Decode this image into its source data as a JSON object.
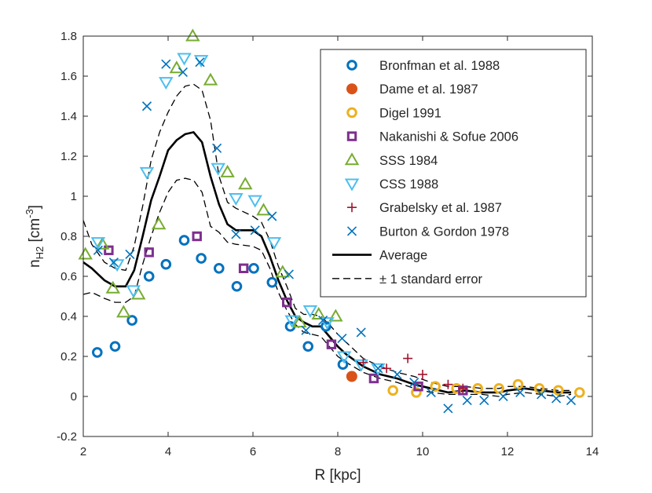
{
  "chart_data": {
    "type": "scatter",
    "xlabel": "R [kpc]",
    "ylabel": {
      "base": "n",
      "sub": "H2",
      "unit_open": " [cm",
      "sup": "-3",
      "unit_close": "]"
    },
    "xlim": [
      2,
      14
    ],
    "ylim": [
      -0.2,
      1.8
    ],
    "xticks": [
      "2",
      "4",
      "6",
      "8",
      "10",
      "12",
      "14"
    ],
    "yticks": [
      "-0.2",
      "0",
      "0.2",
      "0.4",
      "0.6",
      "0.8",
      "1",
      "1.2",
      "1.4",
      "1.6",
      "1.8"
    ],
    "legend_position": "top-right",
    "series": [
      {
        "name": "Bronfman et al. 1988",
        "marker": "circle",
        "color": "#0072BD",
        "points": [
          [
            2.33,
            0.22
          ],
          [
            2.75,
            0.25
          ],
          [
            3.15,
            0.38
          ],
          [
            3.55,
            0.6
          ],
          [
            3.95,
            0.66
          ],
          [
            4.38,
            0.78
          ],
          [
            4.78,
            0.69
          ],
          [
            5.2,
            0.64
          ],
          [
            5.62,
            0.55
          ],
          [
            6.02,
            0.64
          ],
          [
            6.45,
            0.57
          ],
          [
            6.88,
            0.35
          ],
          [
            7.3,
            0.25
          ],
          [
            7.72,
            0.35
          ],
          [
            8.12,
            0.16
          ]
        ]
      },
      {
        "name": "Dame et al. 1987",
        "marker": "filled-circle",
        "color": "#D95319",
        "points": [
          [
            8.33,
            0.1
          ]
        ]
      },
      {
        "name": "Digel 1991",
        "marker": "circle",
        "color": "#EDB120",
        "points": [
          [
            9.3,
            0.03
          ],
          [
            9.85,
            0.02
          ],
          [
            10.3,
            0.05
          ],
          [
            10.8,
            0.04
          ],
          [
            11.3,
            0.04
          ],
          [
            11.8,
            0.04
          ],
          [
            12.25,
            0.06
          ],
          [
            12.75,
            0.04
          ],
          [
            13.2,
            0.03
          ],
          [
            13.7,
            0.02
          ]
        ]
      },
      {
        "name": "Nakanishi & Sofue 2006",
        "marker": "square",
        "color": "#7E2F8E",
        "points": [
          [
            2.6,
            0.73
          ],
          [
            3.55,
            0.72
          ],
          [
            4.68,
            0.8
          ],
          [
            5.78,
            0.64
          ],
          [
            6.8,
            0.47
          ],
          [
            7.85,
            0.26
          ],
          [
            8.85,
            0.09
          ],
          [
            9.9,
            0.05
          ],
          [
            10.95,
            0.03
          ]
        ]
      },
      {
        "name": "SSS 1984",
        "marker": "triangle-up",
        "color": "#77AC30",
        "points": [
          [
            2.05,
            0.71
          ],
          [
            2.45,
            0.76
          ],
          [
            2.7,
            0.54
          ],
          [
            2.95,
            0.42
          ],
          [
            3.3,
            0.51
          ],
          [
            3.78,
            0.86
          ],
          [
            4.2,
            1.64
          ],
          [
            4.58,
            1.8
          ],
          [
            5.0,
            1.58
          ],
          [
            5.4,
            1.12
          ],
          [
            5.82,
            1.06
          ],
          [
            6.25,
            0.93
          ],
          [
            6.7,
            0.62
          ],
          [
            7.1,
            0.37
          ],
          [
            7.55,
            0.41
          ],
          [
            7.95,
            0.4
          ]
        ]
      },
      {
        "name": "CSS 1988",
        "marker": "triangle-down",
        "color": "#4DBEEE",
        "points": [
          [
            2.35,
            0.77
          ],
          [
            2.8,
            0.66
          ],
          [
            3.18,
            0.53
          ],
          [
            3.5,
            1.12
          ],
          [
            3.95,
            1.57
          ],
          [
            4.38,
            1.69
          ],
          [
            4.78,
            1.68
          ],
          [
            5.18,
            1.14
          ],
          [
            5.6,
            0.99
          ],
          [
            6.05,
            0.98
          ],
          [
            6.5,
            0.77
          ],
          [
            6.92,
            0.38
          ],
          [
            7.35,
            0.43
          ],
          [
            7.75,
            0.37
          ],
          [
            8.15,
            0.2
          ],
          [
            8.55,
            0.16
          ],
          [
            8.95,
            0.14
          ]
        ]
      },
      {
        "name": "Grabelsky et al. 1987",
        "marker": "plus",
        "color": "#A2142F",
        "points": [
          [
            8.6,
            0.17
          ],
          [
            9.15,
            0.14
          ],
          [
            9.65,
            0.19
          ],
          [
            10.0,
            0.11
          ],
          [
            10.6,
            0.06
          ],
          [
            10.95,
            0.04
          ]
        ]
      },
      {
        "name": "Burton & Gordon 1978",
        "marker": "x",
        "color": "#0072BD",
        "points": [
          [
            2.35,
            0.73
          ],
          [
            2.72,
            0.67
          ],
          [
            3.1,
            0.71
          ],
          [
            3.5,
            1.45
          ],
          [
            3.95,
            1.66
          ],
          [
            4.35,
            1.62
          ],
          [
            4.75,
            1.67
          ],
          [
            5.15,
            1.24
          ],
          [
            5.6,
            0.81
          ],
          [
            6.05,
            0.83
          ],
          [
            6.45,
            0.9
          ],
          [
            6.85,
            0.61
          ],
          [
            7.25,
            0.33
          ],
          [
            7.65,
            0.38
          ],
          [
            8.1,
            0.29
          ],
          [
            8.55,
            0.32
          ],
          [
            8.95,
            0.14
          ],
          [
            9.4,
            0.11
          ],
          [
            9.8,
            0.07
          ],
          [
            10.2,
            0.02
          ],
          [
            10.6,
            -0.06
          ],
          [
            11.05,
            -0.02
          ],
          [
            11.45,
            -0.02
          ],
          [
            11.9,
            0.0
          ],
          [
            12.3,
            0.02
          ],
          [
            12.8,
            0.01
          ],
          [
            13.15,
            -0.01
          ],
          [
            13.5,
            -0.02
          ]
        ]
      },
      {
        "name": "Average",
        "marker": "line",
        "color": "#000000",
        "points": [
          [
            2.0,
            0.67
          ],
          [
            2.2,
            0.64
          ],
          [
            2.5,
            0.58
          ],
          [
            2.75,
            0.55
          ],
          [
            3.0,
            0.55
          ],
          [
            3.2,
            0.63
          ],
          [
            3.4,
            0.8
          ],
          [
            3.6,
            0.98
          ],
          [
            3.8,
            1.1
          ],
          [
            4.0,
            1.23
          ],
          [
            4.2,
            1.28
          ],
          [
            4.4,
            1.31
          ],
          [
            4.6,
            1.32
          ],
          [
            4.8,
            1.27
          ],
          [
            5.0,
            1.1
          ],
          [
            5.2,
            0.96
          ],
          [
            5.4,
            0.86
          ],
          [
            5.6,
            0.83
          ],
          [
            6.0,
            0.83
          ],
          [
            6.2,
            0.8
          ],
          [
            6.4,
            0.7
          ],
          [
            6.6,
            0.58
          ],
          [
            6.8,
            0.48
          ],
          [
            7.0,
            0.4
          ],
          [
            7.2,
            0.37
          ],
          [
            7.4,
            0.35
          ],
          [
            7.6,
            0.35
          ],
          [
            7.8,
            0.3
          ],
          [
            8.0,
            0.25
          ],
          [
            8.2,
            0.21
          ],
          [
            8.6,
            0.15
          ],
          [
            9.0,
            0.11
          ],
          [
            9.4,
            0.09
          ],
          [
            9.8,
            0.06
          ],
          [
            10.2,
            0.04
          ],
          [
            10.6,
            0.02
          ],
          [
            11.0,
            0.03
          ],
          [
            11.4,
            0.02
          ],
          [
            11.8,
            0.02
          ],
          [
            12.0,
            0.03
          ],
          [
            12.4,
            0.04
          ],
          [
            12.8,
            0.03
          ],
          [
            13.2,
            0.02
          ],
          [
            13.5,
            0.02
          ]
        ]
      },
      {
        "name": "± 1 standard error",
        "marker": "dashed",
        "color": "#000000",
        "upper": [
          [
            2.0,
            0.88
          ],
          [
            2.2,
            0.76
          ],
          [
            2.5,
            0.67
          ],
          [
            2.75,
            0.64
          ],
          [
            3.0,
            0.63
          ],
          [
            3.2,
            0.75
          ],
          [
            3.4,
            0.95
          ],
          [
            3.6,
            1.18
          ],
          [
            3.8,
            1.32
          ],
          [
            4.0,
            1.42
          ],
          [
            4.2,
            1.5
          ],
          [
            4.4,
            1.55
          ],
          [
            4.6,
            1.56
          ],
          [
            4.8,
            1.53
          ],
          [
            5.0,
            1.38
          ],
          [
            5.2,
            1.1
          ],
          [
            5.4,
            0.97
          ],
          [
            5.6,
            0.94
          ],
          [
            6.0,
            0.9
          ],
          [
            6.2,
            0.87
          ],
          [
            6.4,
            0.78
          ],
          [
            6.6,
            0.65
          ],
          [
            6.8,
            0.55
          ],
          [
            7.0,
            0.44
          ],
          [
            7.2,
            0.41
          ],
          [
            7.4,
            0.41
          ],
          [
            7.6,
            0.4
          ],
          [
            7.8,
            0.36
          ],
          [
            8.0,
            0.31
          ],
          [
            8.2,
            0.27
          ],
          [
            8.6,
            0.19
          ],
          [
            9.0,
            0.15
          ],
          [
            9.4,
            0.12
          ],
          [
            9.8,
            0.1
          ],
          [
            10.2,
            0.07
          ],
          [
            10.6,
            0.05
          ],
          [
            11.0,
            0.05
          ],
          [
            11.4,
            0.04
          ],
          [
            11.8,
            0.04
          ],
          [
            12.0,
            0.05
          ],
          [
            12.4,
            0.05
          ],
          [
            12.8,
            0.04
          ],
          [
            13.2,
            0.03
          ],
          [
            13.5,
            0.03
          ]
        ],
        "lower": [
          [
            2.0,
            0.51
          ],
          [
            2.2,
            0.52
          ],
          [
            2.5,
            0.49
          ],
          [
            2.75,
            0.47
          ],
          [
            3.0,
            0.47
          ],
          [
            3.2,
            0.5
          ],
          [
            3.4,
            0.66
          ],
          [
            3.6,
            0.8
          ],
          [
            3.8,
            0.92
          ],
          [
            4.0,
            1.02
          ],
          [
            4.2,
            1.08
          ],
          [
            4.4,
            1.09
          ],
          [
            4.6,
            1.08
          ],
          [
            4.8,
            1.02
          ],
          [
            5.0,
            0.85
          ],
          [
            5.2,
            0.82
          ],
          [
            5.4,
            0.77
          ],
          [
            5.6,
            0.76
          ],
          [
            6.0,
            0.75
          ],
          [
            6.2,
            0.73
          ],
          [
            6.4,
            0.64
          ],
          [
            6.6,
            0.52
          ],
          [
            6.8,
            0.43
          ],
          [
            7.0,
            0.36
          ],
          [
            7.2,
            0.32
          ],
          [
            7.4,
            0.31
          ],
          [
            7.6,
            0.3
          ],
          [
            7.8,
            0.25
          ],
          [
            8.0,
            0.2
          ],
          [
            8.2,
            0.17
          ],
          [
            8.6,
            0.12
          ],
          [
            9.0,
            0.09
          ],
          [
            9.4,
            0.07
          ],
          [
            9.8,
            0.04
          ],
          [
            10.2,
            0.02
          ],
          [
            10.6,
            0.01
          ],
          [
            11.0,
            0.01
          ],
          [
            11.4,
            0.01
          ],
          [
            11.8,
            0.0
          ],
          [
            12.0,
            0.01
          ],
          [
            12.4,
            0.02
          ],
          [
            12.8,
            0.01
          ],
          [
            13.2,
            0.0
          ],
          [
            13.5,
            0.01
          ]
        ]
      }
    ]
  }
}
